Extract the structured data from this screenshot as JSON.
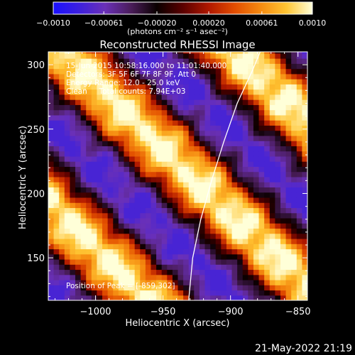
{
  "chart_data": {
    "type": "heatmap",
    "title": "Reconstructed RHESSI Image",
    "xlabel": "Heliocentric X (arcsec)",
    "ylabel": "Heliocentric Y (arcsec)",
    "xlim": [
      -1035,
      -843
    ],
    "ylim": [
      117,
      310
    ],
    "x_ticks": [
      -1000,
      -950,
      -900,
      -850
    ],
    "x_tick_labels": [
      "−1000",
      "−950",
      "−900",
      "−850"
    ],
    "y_ticks": [
      150,
      200,
      250,
      300
    ],
    "y_tick_labels": [
      "150",
      "200",
      "250",
      "300"
    ],
    "colorbar": {
      "range": [
        -0.001,
        0.001
      ],
      "ticks": [
        -0.001,
        -0.00061,
        -0.0002,
        0.0002,
        0.00061,
        0.001
      ],
      "tick_labels": [
        "−0.0010",
        "−0.00061",
        "−0.00020",
        "0.00020",
        "0.00061",
        "0.0010"
      ],
      "units_label": "(photons cm⁻² s⁻¹ asec⁻²)",
      "colors": [
        "#1a10ff",
        "#3d20dd",
        "#6a30b8",
        "#4a1d5a",
        "#0a0000",
        "#5a0000",
        "#b01800",
        "#e24d00",
        "#f58a10",
        "#ffc533",
        "#ffffd8"
      ]
    },
    "annotations": [
      "15-Jun-2015 10:58:16.000 to 11:01:40.000",
      "Detectors: 3F 5F 6F 7F 8F 9F, Att 0",
      "Energy Range: 12.0 - 25.0 keV",
      "Clean     Total counts: 7.94E+03"
    ],
    "peak_label": "Position of Peak = [-859,302]",
    "peak": {
      "x": -859,
      "y": 302
    },
    "limb_curve": [
      {
        "x": -931,
        "y": 117
      },
      {
        "x": -928,
        "y": 150
      },
      {
        "x": -922,
        "y": 180
      },
      {
        "x": -914,
        "y": 210
      },
      {
        "x": -905,
        "y": 240
      },
      {
        "x": -895,
        "y": 270
      },
      {
        "x": -884,
        "y": 295
      },
      {
        "x": -878,
        "y": 310
      }
    ],
    "pixel_size_arcsec": 4
  },
  "timestamp": "21-May-2022 21:19"
}
